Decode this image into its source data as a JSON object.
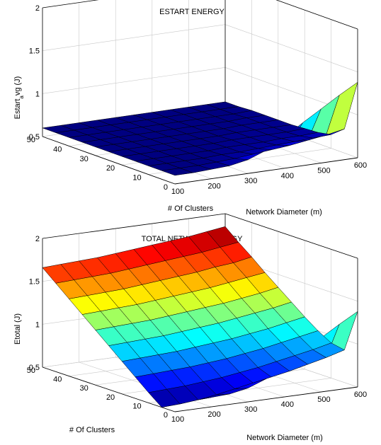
{
  "chart_data": [
    {
      "type": "surface",
      "title": "ESTART ENERGY",
      "xlabel": "Network Diameter (m)",
      "ylabel": "# Of Clusters",
      "zlabel_main": "Estart",
      "zlabel_sub": "a",
      "zlabel_rest": "vg (J)",
      "x": [
        100,
        150,
        200,
        250,
        300,
        350,
        400,
        450,
        500,
        550,
        600
      ],
      "y": [
        0,
        5,
        10,
        15,
        20,
        25,
        30,
        35,
        40,
        45,
        50
      ],
      "xticks": [
        100,
        200,
        300,
        400,
        500,
        600
      ],
      "yticks": [
        0,
        10,
        20,
        30,
        40,
        50
      ],
      "zticks": [
        0.5,
        1,
        1.5,
        2
      ],
      "zlim": [
        0.5,
        2
      ],
      "colormap": "jet",
      "grid": true,
      "z": [
        [
          0.6,
          0.6,
          0.61,
          0.62,
          0.66,
          0.74,
          0.86,
          1.0,
          1.13,
          1.26,
          1.38
        ],
        [
          0.6,
          0.6,
          0.6,
          0.61,
          0.62,
          0.64,
          0.66,
          0.68,
          0.71,
          0.74,
          0.78
        ],
        [
          0.6,
          0.6,
          0.6,
          0.6,
          0.61,
          0.61,
          0.62,
          0.63,
          0.64,
          0.65,
          0.66
        ],
        [
          0.6,
          0.6,
          0.6,
          0.6,
          0.6,
          0.61,
          0.61,
          0.61,
          0.62,
          0.62,
          0.63
        ],
        [
          0.6,
          0.6,
          0.6,
          0.6,
          0.6,
          0.6,
          0.61,
          0.61,
          0.61,
          0.61,
          0.62
        ],
        [
          0.6,
          0.6,
          0.6,
          0.6,
          0.6,
          0.6,
          0.6,
          0.61,
          0.61,
          0.61,
          0.61
        ],
        [
          0.6,
          0.6,
          0.6,
          0.6,
          0.6,
          0.6,
          0.6,
          0.6,
          0.61,
          0.61,
          0.61
        ],
        [
          0.6,
          0.6,
          0.6,
          0.6,
          0.6,
          0.6,
          0.6,
          0.6,
          0.6,
          0.61,
          0.61
        ],
        [
          0.6,
          0.6,
          0.6,
          0.6,
          0.6,
          0.6,
          0.6,
          0.6,
          0.6,
          0.6,
          0.61
        ],
        [
          0.6,
          0.6,
          0.6,
          0.6,
          0.6,
          0.6,
          0.6,
          0.6,
          0.6,
          0.6,
          0.6
        ],
        [
          0.6,
          0.6,
          0.6,
          0.6,
          0.6,
          0.6,
          0.6,
          0.6,
          0.6,
          0.6,
          0.6
        ]
      ]
    },
    {
      "type": "surface",
      "title": "TOTAL NETWORK ENERGY",
      "xlabel": "Network Diameter (m)",
      "ylabel": "# Of Clusters",
      "zlabel_main": "Etotal (J)",
      "zlabel_sub": "",
      "zlabel_rest": "",
      "x": [
        100,
        150,
        200,
        250,
        300,
        350,
        400,
        450,
        500,
        550,
        600
      ],
      "y": [
        0,
        5,
        10,
        15,
        20,
        25,
        30,
        35,
        40,
        45,
        50
      ],
      "xticks": [
        100,
        200,
        300,
        400,
        500,
        600
      ],
      "yticks": [
        0,
        10,
        20,
        30,
        40,
        50
      ],
      "zticks": [
        0.5,
        1,
        1.5,
        2
      ],
      "zlim": [
        0.5,
        2
      ],
      "colormap": "jet",
      "grid": true,
      "z": [
        [
          0.6,
          0.6,
          0.61,
          0.62,
          0.66,
          0.74,
          0.86,
          1.0,
          1.13,
          1.26,
          1.38
        ],
        [
          0.5,
          0.51,
          0.53,
          0.56,
          0.6,
          0.64,
          0.68,
          0.72,
          0.77,
          0.82,
          0.88
        ],
        [
          0.62,
          0.63,
          0.64,
          0.66,
          0.68,
          0.71,
          0.74,
          0.78,
          0.82,
          0.86,
          0.91
        ],
        [
          0.75,
          0.76,
          0.77,
          0.78,
          0.8,
          0.82,
          0.85,
          0.88,
          0.92,
          0.96,
          1.0
        ],
        [
          0.88,
          0.89,
          0.9,
          0.91,
          0.93,
          0.95,
          0.97,
          1.0,
          1.03,
          1.07,
          1.11
        ],
        [
          1.01,
          1.02,
          1.03,
          1.04,
          1.06,
          1.08,
          1.1,
          1.13,
          1.16,
          1.19,
          1.23
        ],
        [
          1.14,
          1.15,
          1.16,
          1.17,
          1.19,
          1.21,
          1.23,
          1.25,
          1.28,
          1.31,
          1.35
        ],
        [
          1.27,
          1.28,
          1.29,
          1.3,
          1.32,
          1.34,
          1.36,
          1.38,
          1.41,
          1.44,
          1.47
        ],
        [
          1.4,
          1.41,
          1.42,
          1.43,
          1.45,
          1.47,
          1.49,
          1.51,
          1.54,
          1.56,
          1.6
        ],
        [
          1.53,
          1.54,
          1.55,
          1.56,
          1.58,
          1.6,
          1.62,
          1.64,
          1.66,
          1.69,
          1.72
        ],
        [
          1.66,
          1.67,
          1.68,
          1.69,
          1.71,
          1.73,
          1.75,
          1.77,
          1.79,
          1.82,
          1.85
        ]
      ]
    }
  ]
}
